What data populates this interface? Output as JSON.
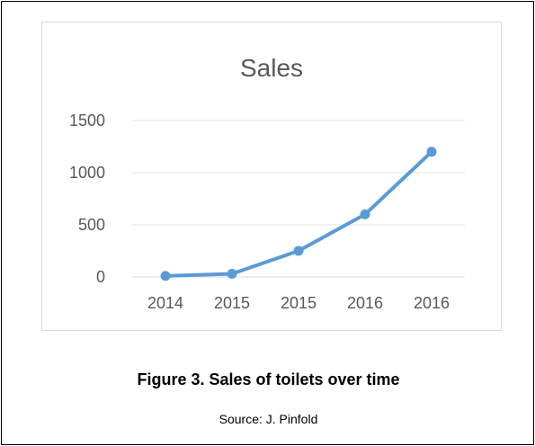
{
  "chart_data": {
    "type": "line",
    "title": "Sales",
    "categories": [
      "2014",
      "2015",
      "2015",
      "2016",
      "2016"
    ],
    "series": [
      {
        "values": [
          10,
          30,
          250,
          600,
          1200
        ],
        "color": "#5b9bd5"
      }
    ],
    "ylim": [
      0,
      1500
    ],
    "yticks": [
      0,
      500,
      1000,
      1500
    ],
    "grid": true,
    "legend": "none"
  },
  "figure_caption": "Figure 3. Sales of toilets over time",
  "source": "Source: J. Pinfold"
}
